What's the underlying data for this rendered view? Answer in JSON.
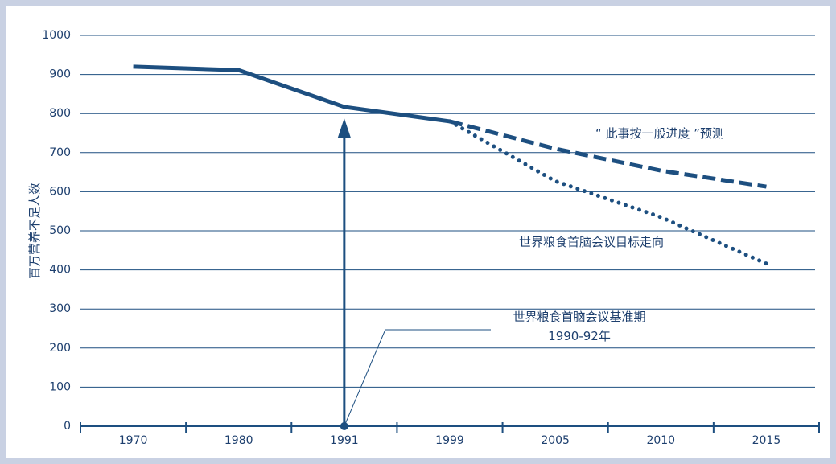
{
  "chart_data": {
    "type": "line",
    "y_label": "百万营养不足人数",
    "categories": [
      "1970",
      "1980",
      "1991",
      "1999",
      "2005",
      "2010",
      "2015"
    ],
    "series": [
      {
        "color": "#1d4f80",
        "style": "solid",
        "values": [
          920,
          911,
          817,
          780,
          null,
          null,
          null
        ]
      },
      {
        "name": "“ 此事按一般进度 ”预测",
        "color": "#1d4f80",
        "style": "dashed",
        "values": [
          null,
          null,
          null,
          780,
          710,
          654,
          613
        ]
      },
      {
        "name": "世界粮食首脑会议目标走向",
        "color": "#1d4f80",
        "style": "dotted",
        "values": [
          null,
          null,
          null,
          780,
          627,
          535,
          416
        ]
      }
    ],
    "annotations": [
      {
        "lines": [
          "世界粮食首脑会议基准期",
          "1990-92年"
        ]
      }
    ],
    "ylim": [
      0,
      1000
    ],
    "yticks": [
      0,
      100,
      200,
      300,
      400,
      500,
      600,
      700,
      800,
      900,
      1000
    ],
    "grid": true
  }
}
